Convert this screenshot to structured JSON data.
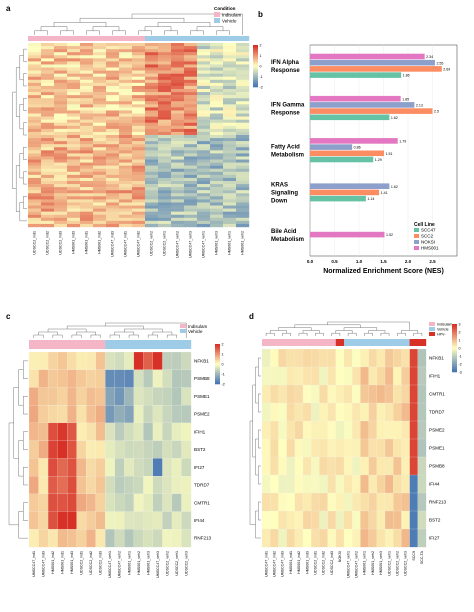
{
  "figure": {
    "panels": {
      "a": "a",
      "b": "b",
      "c": "c",
      "d": "d"
    },
    "legend_a": {
      "title": "Condition",
      "items": [
        "Indisulam",
        "Vehicle"
      ],
      "colors": {
        "indisulam": "#f4b6c6",
        "vehicle": "#9ecbe6"
      },
      "ticks": [
        "2",
        "1",
        "0",
        "-1",
        "-2"
      ]
    },
    "legend_c": {
      "items": [
        "Indisulam",
        "Vehicle"
      ],
      "ticks": [
        "2",
        "1",
        "0",
        "-1",
        "-2"
      ]
    },
    "legend_d": {
      "items": [
        "Indisulam",
        "Vehicle",
        "HPV-"
      ],
      "ticks": [
        "3",
        "2",
        "1",
        "0",
        "-1",
        "-2",
        "-3"
      ]
    },
    "heat_colors": {
      "high": "#d73027",
      "mid": "#ffffbf",
      "low": "#4575b4"
    },
    "samples_a": [
      "UDSCC2_ind1",
      "UDSCC2_ind2",
      "UDSCC2_ind3",
      "HMS001_ind3",
      "HMS001_ind1",
      "HMS001_ind2",
      "UMSCC47_ind3",
      "UMSCC47_ind1",
      "UMSCC47_ind2",
      "UDSCC2_veh2",
      "UDSCC2_veh1",
      "UMSCC47_veh2",
      "UMSCC47_veh3",
      "UMSCC47_veh1",
      "HMS001_veh3",
      "HMS001_veh1",
      "HMS001_veh2"
    ],
    "samples_c": [
      "UMSCC47_ind1",
      "UMSCC47_ind3",
      "HMS001_ind2",
      "HMS001_ind1",
      "HMS001_ind3",
      "UDSCC2_ind1",
      "UDSCC2_ind2",
      "UDSCC2_ind3",
      "UMSCC47_veh1",
      "UMSCC47_veh2",
      "HMS001_veh1",
      "HMS001_veh2",
      "HMS001_veh3",
      "UMSCC47_veh3",
      "UDSCC2_veh2",
      "UDSCC2_veh1",
      "UDSCC2_veh3"
    ],
    "genes_c": [
      "NFKB1",
      "PSMB8",
      "PSME1",
      "PSME2",
      "IFIH1",
      "BST2",
      "IFI27",
      "TDRD7",
      "CMTR1",
      "IFI44",
      "RNF213"
    ],
    "samples_d": [
      "UMSCC47_ind1",
      "UMSCC47_ind2",
      "UMSCC47_ind3",
      "HMS001_ind1",
      "HMS001_ind2",
      "HMS001_ind3",
      "UDSCC2_ind1",
      "UDSCC2_ind2",
      "UDSCC2_ind3",
      "NOKSI",
      "UMSCC47_veh1",
      "UMSCC47_veh2",
      "HMS001_veh1",
      "HMS001_veh2",
      "HMS001_veh3",
      "UDSCC2_veh1",
      "UDSCC2_veh2",
      "UDSCC2_veh3",
      "SCC9",
      "SCC-TA"
    ],
    "genes_d": [
      "NFKB1",
      "IFIH1",
      "CMTR1",
      "TDRD7",
      "PSME2",
      "PSME1",
      "PSMB8",
      "IFI44",
      "RNF213",
      "BST2",
      "IFI27"
    ]
  },
  "chart_data": {
    "type": "bar",
    "orientation": "horizontal",
    "xlabel": "Normalized Enrichment Score (NES)",
    "xlim": [
      0,
      3.0
    ],
    "xticks": [
      "0.0",
      "0.5",
      "1.0",
      "1.5",
      "2.0",
      "2.5"
    ],
    "categories": [
      "IFN Alpha Response",
      "IFN Gamma Response",
      "Fatty Acid Metabolism",
      "KRAS Signaling Down",
      "Bile Acid Metabolism"
    ],
    "legend_title": "Cell Line",
    "series": [
      {
        "name": "HMS001",
        "color": "#e377c2",
        "values": [
          2.34,
          1.85,
          1.79,
          null,
          1.52
        ]
      },
      {
        "name": "NOKSI",
        "color": "#8da0cb",
        "values": [
          2.55,
          2.13,
          0.86,
          1.62,
          null
        ]
      },
      {
        "name": "SCC2",
        "color": "#fc8d62",
        "values": [
          2.69,
          2.5,
          1.51,
          1.41,
          null
        ]
      },
      {
        "name": "SCC47",
        "color": "#66c2a5",
        "values": [
          1.86,
          1.62,
          1.29,
          1.14,
          null
        ]
      }
    ],
    "legend_order": [
      "SCC47",
      "SCC2",
      "NOKSI",
      "HMS001"
    ]
  }
}
